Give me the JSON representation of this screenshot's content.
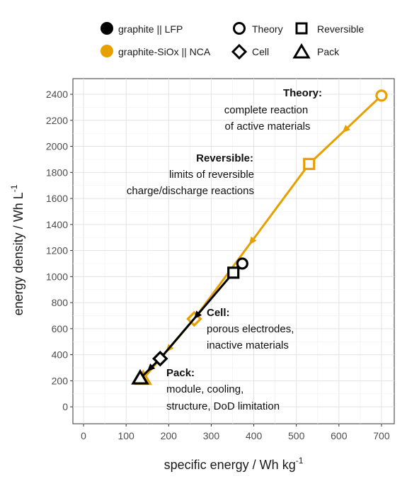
{
  "legend": {
    "chemistries": [
      {
        "label": "graphite || LFP",
        "color": "#000000"
      },
      {
        "label": "graphite-SiOx || NCA",
        "color": "#E6A100"
      }
    ],
    "levels": [
      {
        "label": "Theory",
        "marker": "circle"
      },
      {
        "label": "Reversible",
        "marker": "square"
      },
      {
        "label": "Cell",
        "marker": "diamond"
      },
      {
        "label": "Pack",
        "marker": "triangle"
      }
    ]
  },
  "annotations": [
    {
      "id": "theory",
      "title": "Theory:",
      "lines": [
        "complete reaction",
        "of active materials"
      ]
    },
    {
      "id": "reversible",
      "title": "Reversible:",
      "lines": [
        "limits of reversible",
        "charge/discharge reactions"
      ]
    },
    {
      "id": "cell",
      "title": "Cell:",
      "lines": [
        "porous electrodes,",
        "inactive materials"
      ]
    },
    {
      "id": "pack",
      "title": "Pack:",
      "lines": [
        "module, cooling,",
        "structure, DoD limitation"
      ]
    }
  ],
  "chart_data": {
    "type": "line",
    "xlabel": "specific energy / Wh kg",
    "xlabel_sup": "-1",
    "ylabel": "energy density / Wh L",
    "ylabel_sup": "-1",
    "xlim": [
      -25,
      730
    ],
    "ylim": [
      -130,
      2520
    ],
    "xticks": [
      0,
      100,
      200,
      300,
      400,
      500,
      600,
      700
    ],
    "yticks": [
      0,
      200,
      400,
      600,
      800,
      1000,
      1200,
      1400,
      1600,
      1800,
      2000,
      2200,
      2400
    ],
    "grid": true,
    "series": [
      {
        "name": "graphite-SiOx || NCA",
        "color": "#E6A100",
        "points": [
          {
            "level": "Theory",
            "x": 700,
            "y": 2390
          },
          {
            "level": "Reversible",
            "x": 530,
            "y": 1865
          },
          {
            "level": "Cell",
            "x": 260,
            "y": 675
          },
          {
            "level": "Pack",
            "x": 140,
            "y": 215
          }
        ]
      },
      {
        "name": "graphite || LFP",
        "color": "#000000",
        "points": [
          {
            "level": "Theory",
            "x": 373,
            "y": 1100
          },
          {
            "level": "Reversible",
            "x": 352,
            "y": 1030
          },
          {
            "level": "Cell",
            "x": 180,
            "y": 370
          },
          {
            "level": "Pack",
            "x": 133,
            "y": 218
          }
        ]
      }
    ]
  }
}
